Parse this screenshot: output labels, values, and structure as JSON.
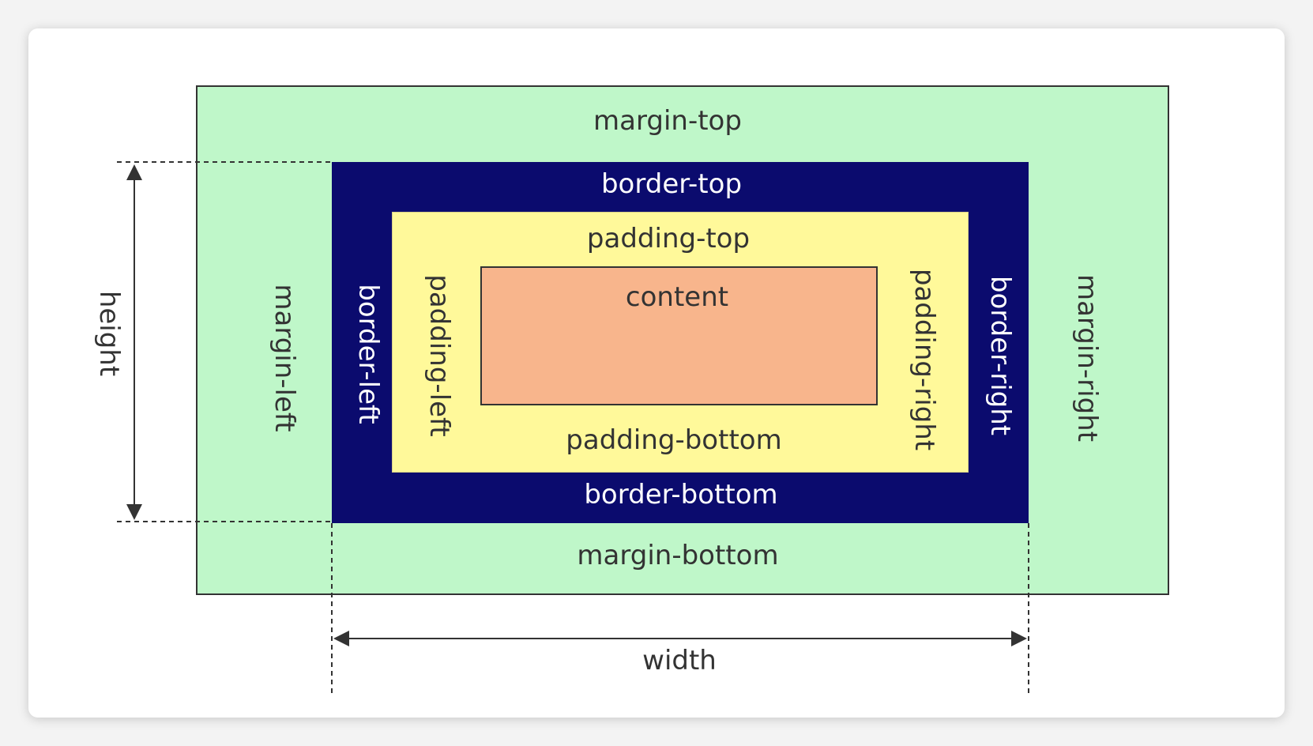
{
  "labels": {
    "margin_top": "margin-top",
    "margin_bottom": "margin-bottom",
    "margin_left": "margin-left",
    "margin_right": "margin-right",
    "border_top": "border-top",
    "border_bottom": "border-bottom",
    "border_left": "border-left",
    "border_right": "border-right",
    "padding_top": "padding-top",
    "padding_bottom": "padding-bottom",
    "padding_left": "padding-left",
    "padding_right": "padding-right",
    "content": "content",
    "width": "width",
    "height": "height"
  },
  "colors": {
    "margin": "#bff7c9",
    "border": "#0b0b6e",
    "padding": "#fff99a",
    "content": "#f8b58c",
    "guide": "#333333"
  }
}
